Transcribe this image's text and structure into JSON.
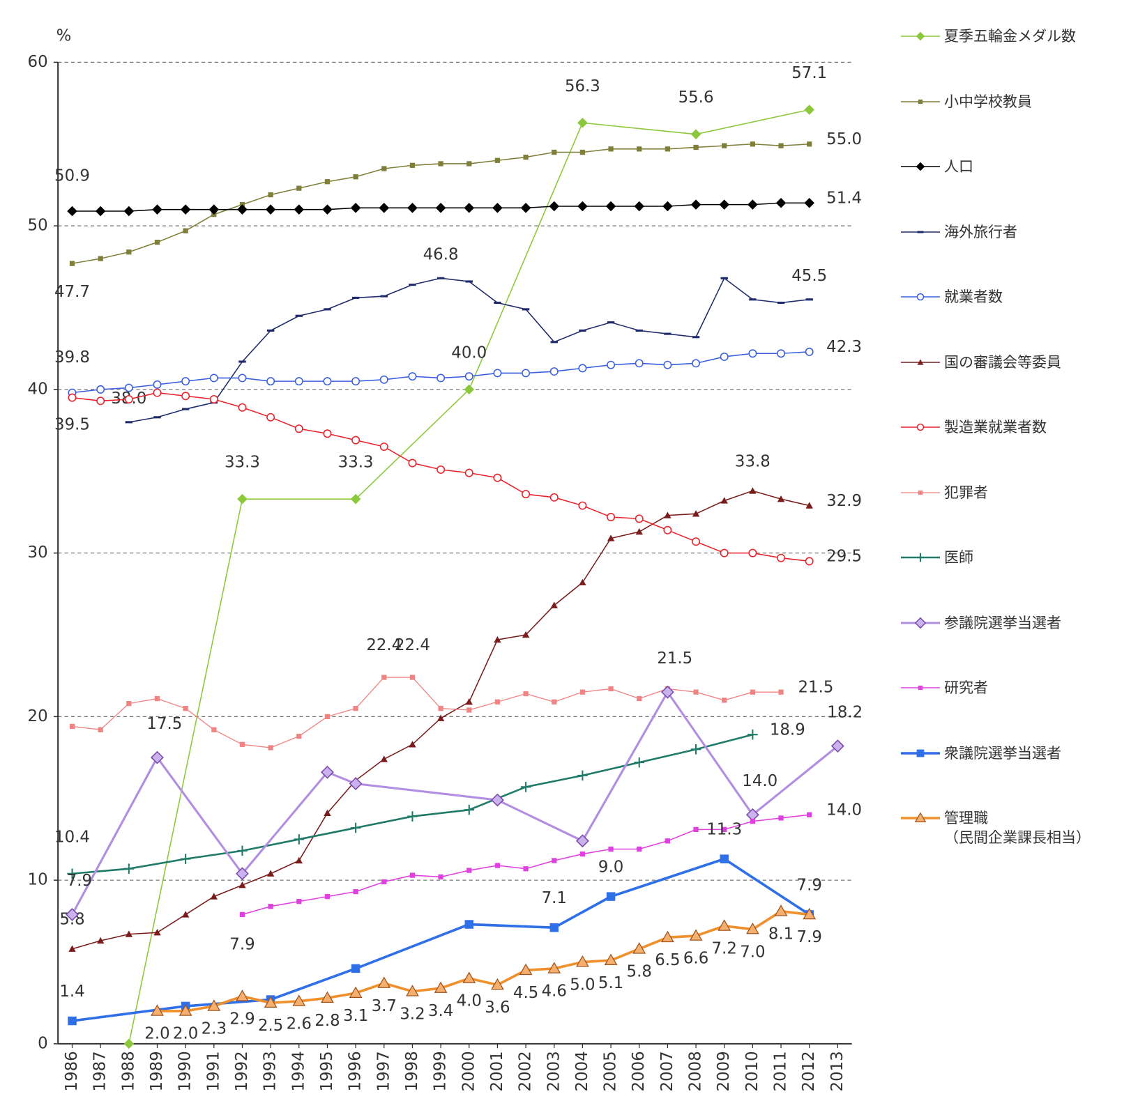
{
  "chart_data": {
    "type": "line",
    "y_label": "%",
    "xlim": [
      1985.5,
      2013.5
    ],
    "xticks": [
      1986,
      1987,
      1988,
      1989,
      1990,
      1991,
      1992,
      1993,
      1994,
      1995,
      1996,
      1997,
      1998,
      1999,
      2000,
      2001,
      2002,
      2003,
      2004,
      2005,
      2006,
      2007,
      2008,
      2009,
      2010,
      2011,
      2012,
      2013
    ],
    "ylim": [
      0,
      60
    ],
    "yticks": [
      0,
      10,
      20,
      30,
      40,
      50,
      60
    ],
    "grid": true,
    "legend": "right",
    "series": [
      {
        "name": "夏季五輪金メダル数",
        "color": "#8cc83c",
        "marker": "diamond",
        "line_width": 1.5,
        "x": [
          1988,
          1992,
          1996,
          2000,
          2004,
          2008,
          2012
        ],
        "values": [
          0,
          33.3,
          33.3,
          40.0,
          56.3,
          55.6,
          57.1
        ],
        "value_labels": [
          null,
          "33.3",
          "33.3",
          "40.0",
          "56.3",
          "55.6",
          "57.1"
        ]
      },
      {
        "name": "小中学校教員",
        "color": "#7f7f3a",
        "marker": "square",
        "line_width": 1.5,
        "x": [
          1986,
          1987,
          1988,
          1989,
          1990,
          1991,
          1992,
          1993,
          1994,
          1995,
          1996,
          1997,
          1998,
          1999,
          2000,
          2001,
          2002,
          2003,
          2004,
          2005,
          2006,
          2007,
          2008,
          2009,
          2010,
          2011,
          2012
        ],
        "values": [
          47.7,
          48.0,
          48.4,
          49.0,
          49.7,
          50.7,
          51.3,
          51.9,
          52.3,
          52.7,
          53.0,
          53.5,
          53.7,
          53.8,
          53.8,
          54.0,
          54.2,
          54.5,
          54.5,
          54.7,
          54.7,
          54.7,
          54.8,
          54.9,
          55.0,
          54.9,
          55.0
        ],
        "value_labels": [
          "47.7",
          null,
          null,
          null,
          null,
          null,
          null,
          null,
          null,
          null,
          null,
          null,
          null,
          null,
          null,
          null,
          null,
          null,
          null,
          null,
          null,
          null,
          null,
          null,
          null,
          null,
          "55.0"
        ]
      },
      {
        "name": "人口",
        "color": "#000000",
        "marker": "diamond",
        "line_width": 1.5,
        "x": [
          1986,
          1987,
          1988,
          1989,
          1990,
          1991,
          1992,
          1993,
          1994,
          1995,
          1996,
          1997,
          1998,
          1999,
          2000,
          2001,
          2002,
          2003,
          2004,
          2005,
          2006,
          2007,
          2008,
          2009,
          2010,
          2011,
          2012
        ],
        "values": [
          50.9,
          50.9,
          50.9,
          51.0,
          51.0,
          51.0,
          51.0,
          51.0,
          51.0,
          51.0,
          51.1,
          51.1,
          51.1,
          51.1,
          51.1,
          51.1,
          51.1,
          51.2,
          51.2,
          51.2,
          51.2,
          51.2,
          51.3,
          51.3,
          51.3,
          51.4,
          51.4
        ],
        "value_labels": [
          "50.9",
          null,
          null,
          null,
          null,
          null,
          null,
          null,
          null,
          null,
          null,
          null,
          null,
          null,
          null,
          null,
          null,
          null,
          null,
          null,
          null,
          null,
          null,
          null,
          null,
          null,
          "51.4"
        ]
      },
      {
        "name": "海外旅行者",
        "color": "#1f2a6b",
        "marker": "dash",
        "line_width": 1.5,
        "x": [
          1988,
          1989,
          1990,
          1991,
          1992,
          1993,
          1994,
          1995,
          1996,
          1997,
          1998,
          1999,
          2000,
          2001,
          2002,
          2003,
          2004,
          2005,
          2006,
          2007,
          2008,
          2009,
          2010,
          2011,
          2012
        ],
        "values": [
          38.0,
          38.3,
          38.8,
          39.2,
          41.7,
          43.6,
          44.5,
          44.9,
          45.6,
          45.7,
          46.4,
          46.8,
          46.6,
          45.3,
          44.9,
          42.9,
          43.6,
          44.1,
          43.6,
          43.4,
          43.2,
          46.8,
          45.5,
          45.3,
          45.5
        ],
        "value_labels": [
          "38.0",
          null,
          null,
          null,
          null,
          null,
          null,
          null,
          null,
          null,
          null,
          "46.8",
          null,
          null,
          null,
          null,
          null,
          null,
          null,
          null,
          null,
          null,
          null,
          null,
          "45.5"
        ]
      },
      {
        "name": "就業者数",
        "color": "#3a5ee0",
        "marker": "circle",
        "line_width": 1.5,
        "x": [
          1986,
          1987,
          1988,
          1989,
          1990,
          1991,
          1992,
          1993,
          1994,
          1995,
          1996,
          1997,
          1998,
          1999,
          2000,
          2001,
          2002,
          2003,
          2004,
          2005,
          2006,
          2007,
          2008,
          2009,
          2010,
          2011,
          2012
        ],
        "values": [
          39.8,
          40.0,
          40.1,
          40.3,
          40.5,
          40.7,
          40.7,
          40.5,
          40.5,
          40.5,
          40.5,
          40.6,
          40.8,
          40.7,
          40.8,
          41.0,
          41.0,
          41.1,
          41.3,
          41.5,
          41.6,
          41.5,
          41.6,
          42.0,
          42.2,
          42.2,
          42.3
        ],
        "value_labels": [
          "39.8",
          null,
          null,
          null,
          null,
          null,
          null,
          null,
          null,
          null,
          null,
          null,
          null,
          null,
          null,
          null,
          null,
          null,
          null,
          null,
          null,
          null,
          null,
          null,
          null,
          null,
          "42.3"
        ]
      },
      {
        "name": "国の審議会等委員",
        "color": "#7a1c1c",
        "marker": "triangle",
        "line_width": 1.5,
        "x": [
          1986,
          1987,
          1988,
          1989,
          1990,
          1991,
          1992,
          1993,
          1994,
          1995,
          1996,
          1997,
          1998,
          1999,
          2000,
          2001,
          2002,
          2003,
          2004,
          2005,
          2006,
          2007,
          2008,
          2009,
          2010,
          2011,
          2012
        ],
        "values": [
          5.8,
          6.3,
          6.7,
          6.8,
          7.9,
          9.0,
          9.7,
          10.4,
          11.2,
          14.1,
          16.1,
          17.4,
          18.3,
          19.9,
          20.9,
          24.7,
          25.0,
          26.8,
          28.2,
          30.9,
          31.3,
          32.3,
          32.4,
          33.2,
          33.8,
          33.3,
          32.9
        ],
        "value_labels": [
          "5.8",
          null,
          null,
          null,
          null,
          null,
          null,
          null,
          null,
          null,
          null,
          null,
          null,
          null,
          null,
          null,
          null,
          null,
          null,
          null,
          null,
          null,
          null,
          null,
          "33.8",
          null,
          "32.9"
        ]
      },
      {
        "name": "製造業就業者数",
        "color": "#e8222a",
        "marker": "circle",
        "line_width": 1.5,
        "x": [
          1986,
          1987,
          1988,
          1989,
          1990,
          1991,
          1992,
          1993,
          1994,
          1995,
          1996,
          1997,
          1998,
          1999,
          2000,
          2001,
          2002,
          2003,
          2004,
          2005,
          2006,
          2007,
          2008,
          2009,
          2010,
          2011,
          2012
        ],
        "values": [
          39.5,
          39.3,
          39.4,
          39.8,
          39.6,
          39.4,
          38.9,
          38.3,
          37.6,
          37.3,
          36.9,
          36.5,
          35.5,
          35.1,
          34.9,
          34.6,
          33.6,
          33.4,
          32.9,
          32.2,
          32.1,
          31.4,
          30.7,
          30.0,
          30.0,
          29.7,
          29.5
        ],
        "value_labels": [
          "39.5",
          null,
          null,
          null,
          null,
          null,
          null,
          null,
          null,
          null,
          null,
          null,
          null,
          null,
          null,
          null,
          null,
          null,
          null,
          null,
          null,
          null,
          null,
          null,
          null,
          null,
          "29.5"
        ]
      },
      {
        "name": "犯罪者",
        "color": "#f08484",
        "marker": "square",
        "line_width": 1.3,
        "x": [
          1986,
          1987,
          1988,
          1989,
          1990,
          1991,
          1992,
          1993,
          1994,
          1995,
          1996,
          1997,
          1998,
          1999,
          2000,
          2001,
          2002,
          2003,
          2004,
          2005,
          2006,
          2007,
          2008,
          2009,
          2010,
          2011
        ],
        "values": [
          19.4,
          19.2,
          20.8,
          21.1,
          20.5,
          19.2,
          18.3,
          18.1,
          18.8,
          20.0,
          20.5,
          22.4,
          22.4,
          20.5,
          20.4,
          20.9,
          21.4,
          20.9,
          21.5,
          21.7,
          21.1,
          21.7,
          21.5,
          21.0,
          21.5,
          21.5
        ],
        "value_labels": [
          null,
          null,
          null,
          null,
          null,
          null,
          null,
          null,
          null,
          null,
          null,
          "22.4",
          "22.4",
          null,
          null,
          null,
          null,
          null,
          null,
          null,
          null,
          null,
          null,
          null,
          null,
          "21.5"
        ]
      },
      {
        "name": "医師",
        "color": "#1f7a68",
        "marker": "plus",
        "line_width": 2.5,
        "x": [
          1986,
          1988,
          1990,
          1992,
          1994,
          1996,
          1998,
          2000,
          2002,
          2004,
          2006,
          2008,
          2010
        ],
        "values": [
          10.4,
          10.7,
          11.3,
          11.8,
          12.5,
          13.2,
          13.9,
          14.3,
          15.7,
          16.4,
          17.2,
          18.0,
          18.9
        ],
        "value_labels": [
          "10.4",
          null,
          null,
          null,
          null,
          null,
          null,
          null,
          null,
          null,
          null,
          null,
          "18.9"
        ]
      },
      {
        "name": "参議院選挙当選者",
        "color": "#b28ee2",
        "marker": "diamond-open",
        "line_width": 3,
        "x": [
          1986,
          1989,
          1992,
          1995,
          1996,
          2001,
          2004,
          2007,
          2010,
          2013
        ],
        "values": [
          7.9,
          17.5,
          10.4,
          16.6,
          15.9,
          14.9,
          12.4,
          21.5,
          14.0,
          18.2
        ],
        "value_labels": [
          "7.9",
          "17.5",
          null,
          null,
          null,
          null,
          null,
          "21.5",
          "14.0",
          "18.2"
        ]
      },
      {
        "name": "研究者",
        "color": "#e040e0",
        "marker": "square",
        "line_width": 1.5,
        "x": [
          1992,
          1993,
          1994,
          1995,
          1996,
          1997,
          1998,
          1999,
          2000,
          2001,
          2002,
          2003,
          2004,
          2005,
          2006,
          2007,
          2008,
          2009,
          2010,
          2011,
          2012
        ],
        "values": [
          7.9,
          8.4,
          8.7,
          9.0,
          9.3,
          9.9,
          10.3,
          10.2,
          10.6,
          10.9,
          10.7,
          11.2,
          11.6,
          11.9,
          11.9,
          12.4,
          13.1,
          13.1,
          13.6,
          13.8,
          14.0
        ],
        "value_labels": [
          "7.9",
          null,
          null,
          null,
          null,
          null,
          null,
          null,
          null,
          null,
          null,
          null,
          null,
          null,
          null,
          null,
          null,
          null,
          null,
          null,
          "14.0"
        ]
      },
      {
        "name": "衆議院選挙当選者",
        "color": "#2f6fe8",
        "marker": "square-filled",
        "line_width": 3.5,
        "x": [
          1986,
          1990,
          1993,
          1996,
          2000,
          2003,
          2005,
          2009,
          2012
        ],
        "values": [
          1.4,
          2.3,
          2.7,
          4.6,
          7.3,
          7.1,
          9.0,
          11.3,
          7.9
        ],
        "value_labels": [
          "1.4",
          null,
          null,
          null,
          null,
          "7.1",
          "9.0",
          "11.3",
          "7.9"
        ]
      },
      {
        "name": "管理職\n（民間企業課長相当）",
        "color": "#f0902c",
        "marker": "triangle-big",
        "line_width": 3.5,
        "x": [
          1989,
          1990,
          1991,
          1992,
          1993,
          1994,
          1995,
          1996,
          1997,
          1998,
          1999,
          2000,
          2001,
          2002,
          2003,
          2004,
          2005,
          2006,
          2007,
          2008,
          2009,
          2010,
          2011,
          2012
        ],
        "values": [
          2.0,
          2.0,
          2.3,
          2.9,
          2.5,
          2.6,
          2.8,
          3.1,
          3.7,
          3.2,
          3.4,
          4.0,
          3.6,
          4.5,
          4.6,
          5.0,
          5.1,
          5.8,
          6.5,
          6.6,
          7.2,
          7.0,
          8.1,
          7.9
        ],
        "value_labels": [
          "2.0",
          "2.0",
          "2.3",
          "2.9",
          "2.5",
          "2.6",
          "2.8",
          "3.1",
          "3.7",
          "3.2",
          "3.4",
          "4.0",
          "3.6",
          "4.5",
          "4.6",
          "5.0",
          "5.1",
          "5.8",
          "6.5",
          "6.6",
          "7.2",
          "7.0",
          "8.1",
          "7.9"
        ]
      }
    ]
  }
}
